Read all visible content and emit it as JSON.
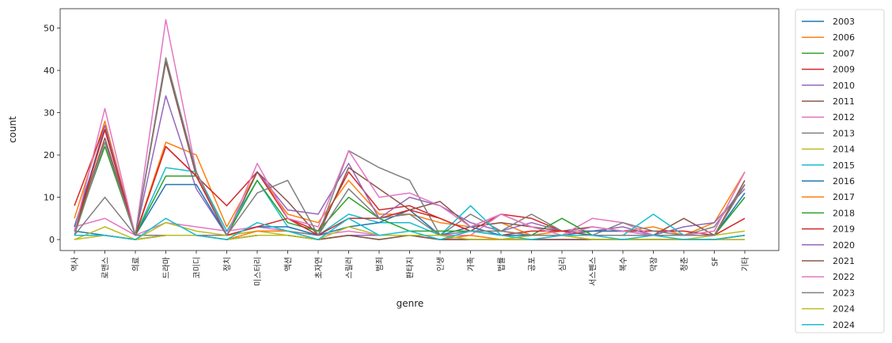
{
  "chart_data": {
    "type": "line",
    "xlabel": "genre",
    "ylabel": "count",
    "ylim": [
      -2.6,
      54.6
    ],
    "yticks": [
      0,
      10,
      20,
      30,
      40,
      50
    ],
    "grid": false,
    "legend_position": "outside-right",
    "categories": [
      "역사",
      "로맨스",
      "의료",
      "드라마",
      "코미디",
      "정치",
      "미스터리",
      "액션",
      "초자연",
      "스릴러",
      "범죄",
      "판타지",
      "인생",
      "가족",
      "법률",
      "공포",
      "심리",
      "서스펜스",
      "복수",
      "막장",
      "청춘",
      "SF",
      "기타"
    ],
    "series": [
      {
        "name": "2003",
        "color": "#1f77b4",
        "values": [
          2,
          1,
          0,
          1,
          1,
          0,
          1,
          1,
          0,
          1,
          1,
          1,
          0,
          0,
          0,
          0,
          0,
          0,
          0,
          0,
          0,
          0,
          1
        ]
      },
      {
        "name": "2006",
        "color": "#ff7f0e",
        "values": [
          5,
          28,
          1,
          23,
          20,
          3,
          16,
          6,
          4,
          14,
          6,
          6,
          4,
          3,
          4,
          1,
          2,
          2,
          2,
          3,
          1,
          4,
          16
        ]
      },
      {
        "name": "2007",
        "color": "#2ca02c",
        "values": [
          1,
          1,
          0,
          1,
          1,
          0,
          1,
          1,
          0,
          1,
          0,
          1,
          1,
          0,
          0,
          1,
          1,
          0,
          0,
          0,
          0,
          0,
          1
        ]
      },
      {
        "name": "2009",
        "color": "#d62728",
        "values": [
          8,
          27,
          1,
          22,
          15,
          8,
          16,
          5,
          2,
          16,
          7,
          8,
          5,
          2,
          6,
          5,
          2,
          2,
          2,
          2,
          2,
          1,
          5
        ]
      },
      {
        "name": "2010",
        "color": "#9467bd",
        "values": [
          2,
          27,
          1,
          34,
          12,
          1,
          16,
          7,
          6,
          18,
          5,
          10,
          8,
          4,
          2,
          4,
          2,
          2,
          3,
          1,
          3,
          4,
          12
        ]
      },
      {
        "name": "2011",
        "color": "#8c564b",
        "values": [
          2,
          24,
          1,
          42,
          15,
          1,
          16,
          9,
          1,
          17,
          12,
          7,
          9,
          3,
          4,
          3,
          2,
          3,
          2,
          1,
          5,
          1,
          14
        ]
      },
      {
        "name": "2012",
        "color": "#e377c2",
        "values": [
          3,
          5,
          1,
          4,
          3,
          2,
          3,
          2,
          1,
          2,
          1,
          1,
          1,
          1,
          6,
          3,
          1,
          5,
          4,
          1,
          1,
          2,
          16
        ]
      },
      {
        "name": "2013",
        "color": "#7f7f7f",
        "values": [
          1,
          10,
          1,
          1,
          1,
          1,
          2,
          2,
          1,
          21,
          17,
          14,
          1,
          6,
          2,
          6,
          2,
          1,
          4,
          2,
          1,
          3,
          13
        ]
      },
      {
        "name": "2014",
        "color": "#bcbd22",
        "values": [
          0,
          3,
          0,
          4,
          2,
          1,
          2,
          1,
          0,
          1,
          1,
          1,
          0,
          1,
          0,
          1,
          1,
          0,
          0,
          0,
          0,
          1,
          2
        ]
      },
      {
        "name": "2015",
        "color": "#17becf",
        "values": [
          3,
          26,
          1,
          17,
          16,
          2,
          14,
          3,
          1,
          6,
          4,
          4,
          1,
          8,
          1,
          1,
          1,
          1,
          1,
          6,
          1,
          1,
          10
        ]
      },
      {
        "name": "2016",
        "color": "#1f77b4",
        "values": [
          3,
          26,
          1,
          13,
          13,
          1,
          3,
          3,
          1,
          3,
          4,
          7,
          1,
          3,
          1,
          1,
          1,
          2,
          2,
          1,
          1,
          1,
          11
        ]
      },
      {
        "name": "2017",
        "color": "#ff7f0e",
        "values": [
          1,
          1,
          0,
          1,
          1,
          0,
          2,
          2,
          0,
          1,
          1,
          1,
          0,
          1,
          0,
          0,
          0,
          0,
          0,
          0,
          0,
          0,
          1
        ]
      },
      {
        "name": "2018",
        "color": "#2ca02c",
        "values": [
          2,
          22,
          1,
          15,
          15,
          1,
          14,
          4,
          2,
          10,
          5,
          2,
          2,
          2,
          2,
          1,
          5,
          1,
          1,
          1,
          1,
          1,
          10
        ]
      },
      {
        "name": "2019",
        "color": "#d62728",
        "values": [
          2,
          26,
          1,
          22,
          15,
          1,
          3,
          5,
          1,
          5,
          5,
          7,
          5,
          2,
          1,
          2,
          2,
          1,
          1,
          1,
          1,
          1,
          13
        ]
      },
      {
        "name": "2020",
        "color": "#9467bd",
        "values": [
          1,
          1,
          0,
          1,
          1,
          0,
          1,
          1,
          0,
          1,
          1,
          1,
          0,
          0,
          0,
          0,
          0,
          0,
          0,
          0,
          0,
          0,
          0
        ]
      },
      {
        "name": "2021",
        "color": "#8c564b",
        "values": [
          1,
          1,
          0,
          1,
          1,
          0,
          1,
          1,
          0,
          1,
          0,
          1,
          0,
          0,
          0,
          0,
          0,
          0,
          0,
          0,
          0,
          0,
          1
        ]
      },
      {
        "name": "2022",
        "color": "#e377c2",
        "values": [
          2,
          31,
          1,
          52,
          16,
          1,
          18,
          5,
          3,
          21,
          10,
          11,
          8,
          3,
          6,
          3,
          1,
          3,
          2,
          1,
          1,
          2,
          16
        ]
      },
      {
        "name": "2023",
        "color": "#7f7f7f",
        "values": [
          1,
          23,
          1,
          43,
          16,
          1,
          11,
          14,
          1,
          12,
          5,
          6,
          1,
          2,
          2,
          1,
          1,
          1,
          1,
          1,
          1,
          1,
          13
        ]
      },
      {
        "name": "2024",
        "color": "#bcbd22",
        "values": [
          0,
          1,
          0,
          1,
          1,
          0,
          1,
          1,
          0,
          3,
          1,
          1,
          1,
          0,
          0,
          0,
          1,
          0,
          0,
          0,
          0,
          0,
          0
        ]
      },
      {
        "name": "2024",
        "color": "#17becf",
        "values": [
          1,
          1,
          0,
          5,
          1,
          0,
          4,
          2,
          0,
          5,
          1,
          2,
          0,
          2,
          1,
          0,
          1,
          1,
          0,
          1,
          0,
          0,
          1
        ]
      }
    ]
  }
}
